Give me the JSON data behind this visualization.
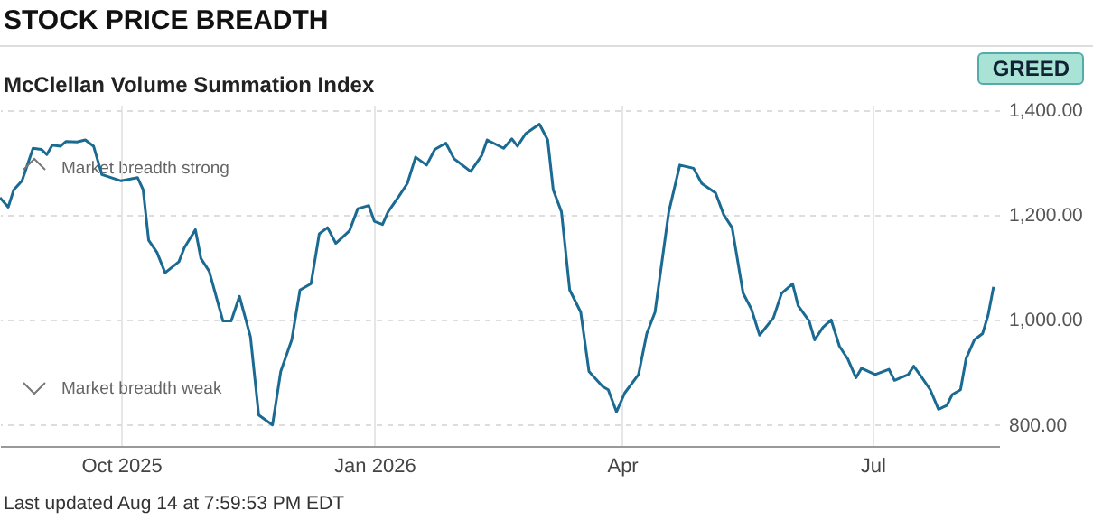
{
  "chart_data": {
    "type": "line",
    "title": "STOCK PRICE BREADTH",
    "subtitle": "McClellan Volume Summation Index",
    "annotations": [
      "GREED",
      "Market breadth strong",
      "Market breadth weak",
      "Last updated Aug 14 at 7:59:53 PM EDT"
    ],
    "x": [
      "2025-08-18",
      "2025-08-21",
      "2025-08-23",
      "2025-08-26",
      "2025-08-30",
      "2025-09-02",
      "2025-09-04",
      "2025-09-06",
      "2025-09-09",
      "2025-09-11",
      "2025-09-15",
      "2025-09-18",
      "2025-09-21",
      "2025-09-24",
      "2025-10-01",
      "2025-10-07",
      "2025-10-09",
      "2025-10-11",
      "2025-10-14",
      "2025-10-17",
      "2025-10-22",
      "2025-10-24",
      "2025-10-28",
      "2025-10-30",
      "2025-11-02",
      "2025-11-07",
      "2025-11-10",
      "2025-11-13",
      "2025-11-17",
      "2025-11-20",
      "2025-11-25",
      "2025-11-28",
      "2025-12-02",
      "2025-12-05",
      "2025-12-09",
      "2025-12-12",
      "2025-12-15",
      "2025-12-18",
      "2025-12-23",
      "2025-12-26",
      "2025-12-30",
      "2026-01-01",
      "2026-01-04",
      "2026-01-06",
      "2026-01-10",
      "2026-01-13",
      "2026-01-16",
      "2026-01-20",
      "2026-01-23",
      "2026-01-27",
      "2026-01-30",
      "2026-02-05",
      "2026-02-09",
      "2026-02-11",
      "2026-02-17",
      "2026-02-20",
      "2026-02-22",
      "2026-02-25",
      "2026-03-02",
      "2026-03-05",
      "2026-03-07",
      "2026-03-10",
      "2026-03-13",
      "2026-03-17",
      "2026-03-20",
      "2026-03-25",
      "2026-03-27",
      "2026-03-30",
      "2026-04-02",
      "2026-04-07",
      "2026-04-10",
      "2026-04-13",
      "2026-04-18",
      "2026-04-22",
      "2026-04-27",
      "2026-04-30",
      "2026-05-05",
      "2026-05-08",
      "2026-05-11",
      "2026-05-15",
      "2026-05-18",
      "2026-05-21",
      "2026-05-26",
      "2026-05-29",
      "2026-06-02",
      "2026-06-04",
      "2026-06-08",
      "2026-06-10",
      "2026-06-13",
      "2026-06-16",
      "2026-06-19",
      "2026-06-22",
      "2026-06-25",
      "2026-06-27",
      "2026-07-02",
      "2026-07-07",
      "2026-07-09",
      "2026-07-14",
      "2026-07-16",
      "2026-07-19",
      "2026-07-22",
      "2026-07-25",
      "2026-07-28",
      "2026-07-30",
      "2026-08-02",
      "2026-08-04",
      "2026-08-07",
      "2026-08-10",
      "2026-08-12",
      "2026-08-14"
    ],
    "series": [
      {
        "color": "#1a6a92",
        "values": [
          1233,
          1215,
          1248,
          1265,
          1327,
          1325,
          1315,
          1333,
          1331,
          1340,
          1339,
          1343,
          1331,
          1277,
          1265,
          1271,
          1248,
          1152,
          1129,
          1090,
          1111,
          1138,
          1172,
          1117,
          1093,
          998,
          998,
          1045,
          968,
          819,
          800,
          902,
          962,
          1057,
          1069,
          1164,
          1176,
          1146,
          1170,
          1212,
          1218,
          1188,
          1182,
          1206,
          1236,
          1260,
          1310,
          1295,
          1325,
          1337,
          1307,
          1283,
          1313,
          1343,
          1327,
          1345,
          1331,
          1355,
          1373,
          1343,
          1248,
          1206,
          1057,
          1015,
          902,
          873,
          867,
          825,
          861,
          896,
          974,
          1015,
          1206,
          1295,
          1289,
          1260,
          1242,
          1200,
          1176,
          1051,
          1021,
          971,
          1004,
          1051,
          1069,
          1027,
          998,
          962,
          986,
          1000,
          950,
          926,
          890,
          908,
          896,
          906,
          885,
          896,
          912,
          890,
          867,
          830,
          837,
          858,
          867,
          926,
          962,
          974,
          1009,
          1063
        ]
      }
    ],
    "xlim": [
      "2025-08-18",
      "2026-08-16"
    ],
    "ylim": [
      760,
      1410
    ],
    "xticks": [
      {
        "value": "2025-10-01",
        "label": "Oct 2025"
      },
      {
        "value": "2026-01-01",
        "label": "Jan 2026"
      },
      {
        "value": "2026-04-01",
        "label": "Apr"
      },
      {
        "value": "2026-07-01",
        "label": "Jul"
      }
    ],
    "yticks": [
      {
        "value": 800,
        "label": "800.00"
      },
      {
        "value": 1000,
        "label": "1,000.00"
      },
      {
        "value": 1200,
        "label": "1,200.00"
      },
      {
        "value": 1400,
        "label": "1,400.00"
      }
    ],
    "grid": true,
    "marker": "none",
    "line_style": "solid"
  }
}
